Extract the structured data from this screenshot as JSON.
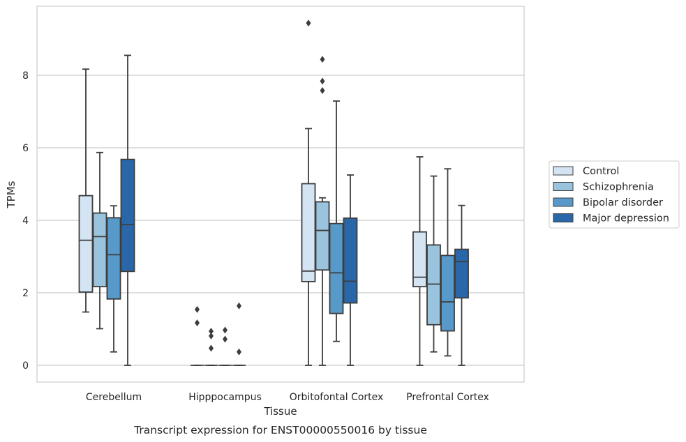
{
  "chart_data": {
    "type": "box",
    "xlabel": "Tissue",
    "ylabel": "TPMs",
    "caption": "Transcript expression for ENST00000550016 by tissue",
    "ylim": [
      -0.45,
      9.9
    ],
    "yticks": [
      0,
      2,
      4,
      6,
      8
    ],
    "ytick_labels": [
      "0",
      "2",
      "4",
      "6",
      "8"
    ],
    "grid": "horizontal",
    "legend_position": "right",
    "categories": [
      "Cerebellum",
      "Hipppocampus",
      "Orbitofontal Cortex",
      "Prefrontal Cortex"
    ],
    "series": [
      {
        "name": "Control",
        "color": "#d4e4f3",
        "boxes": [
          {
            "whislo": 1.47,
            "q1": 2.02,
            "med": 3.45,
            "q3": 4.68,
            "whishi": 8.17,
            "fliers": []
          },
          {
            "whislo": 0.0,
            "q1": 0.0,
            "med": 0.0,
            "q3": 0.0,
            "whishi": 0.0,
            "fliers": [
              1.17,
              1.54
            ]
          },
          {
            "whislo": 0.0,
            "q1": 2.31,
            "med": 2.6,
            "q3": 5.01,
            "whishi": 6.53,
            "fliers": [
              9.44
            ]
          },
          {
            "whislo": 0.0,
            "q1": 2.17,
            "med": 2.43,
            "q3": 3.68,
            "whishi": 5.75,
            "fliers": []
          }
        ]
      },
      {
        "name": "Schizophrenia",
        "color": "#9ac3dd",
        "boxes": [
          {
            "whislo": 1.01,
            "q1": 2.17,
            "med": 3.55,
            "q3": 4.2,
            "whishi": 5.87,
            "fliers": []
          },
          {
            "whislo": 0.0,
            "q1": 0.0,
            "med": 0.0,
            "q3": 0.0,
            "whishi": 0.0,
            "fliers": [
              0.47,
              0.81,
              0.94
            ]
          },
          {
            "whislo": 0.0,
            "q1": 2.63,
            "med": 3.72,
            "q3": 4.51,
            "whishi": 4.62,
            "fliers": [
              7.58,
              7.84,
              8.44
            ]
          },
          {
            "whislo": 0.37,
            "q1": 1.12,
            "med": 2.24,
            "q3": 3.32,
            "whishi": 5.22,
            "fliers": []
          }
        ]
      },
      {
        "name": "Bipolar disorder",
        "color": "#5799c9",
        "boxes": [
          {
            "whislo": 0.37,
            "q1": 1.83,
            "med": 3.05,
            "q3": 4.07,
            "whishi": 4.4,
            "fliers": []
          },
          {
            "whislo": 0.0,
            "q1": 0.0,
            "med": 0.0,
            "q3": 0.0,
            "whishi": 0.0,
            "fliers": [
              0.72,
              0.97
            ]
          },
          {
            "whislo": 0.66,
            "q1": 1.43,
            "med": 2.55,
            "q3": 3.91,
            "whishi": 7.29,
            "fliers": []
          },
          {
            "whislo": 0.26,
            "q1": 0.95,
            "med": 1.75,
            "q3": 3.03,
            "whishi": 5.42,
            "fliers": []
          }
        ]
      },
      {
        "name": "Major depression",
        "color": "#2a67a8",
        "boxes": [
          {
            "whislo": 0.0,
            "q1": 2.59,
            "med": 3.88,
            "q3": 5.68,
            "whishi": 8.55,
            "fliers": []
          },
          {
            "whislo": 0.0,
            "q1": 0.0,
            "med": 0.0,
            "q3": 0.0,
            "whishi": 0.0,
            "fliers": [
              0.37,
              1.64
            ]
          },
          {
            "whislo": 0.0,
            "q1": 1.72,
            "med": 2.32,
            "q3": 4.06,
            "whishi": 5.25,
            "fliers": []
          },
          {
            "whislo": 0.0,
            "q1": 1.86,
            "med": 2.86,
            "q3": 3.2,
            "whishi": 4.41,
            "fliers": []
          }
        ]
      }
    ]
  }
}
